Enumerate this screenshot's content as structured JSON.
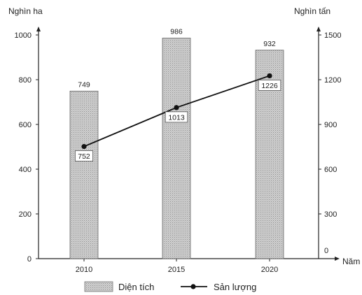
{
  "chart_data": {
    "type": "bar+line",
    "categories": [
      "2010",
      "2015",
      "2020"
    ],
    "series": [
      {
        "name": "Diện tích",
        "kind": "bar",
        "axis": "left",
        "values": [
          749,
          986,
          932
        ],
        "labels": [
          "749",
          "986",
          "932"
        ]
      },
      {
        "name": "Sản lượng",
        "kind": "line",
        "axis": "right",
        "values": [
          752,
          1013,
          1226
        ],
        "labels": [
          "752",
          "1013",
          "1226"
        ]
      }
    ],
    "left_axis": {
      "label": "Nghìn ha",
      "ylim": [
        0,
        1000
      ],
      "ticks": [
        0,
        200,
        400,
        600,
        800,
        1000
      ],
      "tick_labels": [
        "0",
        "200",
        "400",
        "600",
        "800",
        "1000"
      ]
    },
    "right_axis": {
      "label": "Nghìn tấn",
      "ylim": [
        0,
        1500
      ],
      "ticks": [
        0,
        300,
        600,
        900,
        1200,
        1500
      ],
      "tick_labels": [
        "0",
        "300",
        "600",
        "900",
        "1200",
        "1500"
      ]
    },
    "x_axis": {
      "label": "Năm"
    },
    "legend": {
      "position": "bottom",
      "items": [
        "Diện tích",
        "Sản lượng"
      ]
    },
    "grid": false,
    "colors": {
      "bar_fill": "#c9c9c9",
      "bar_stroke": "#666666",
      "line": "#111111",
      "axis": "#222222"
    }
  }
}
